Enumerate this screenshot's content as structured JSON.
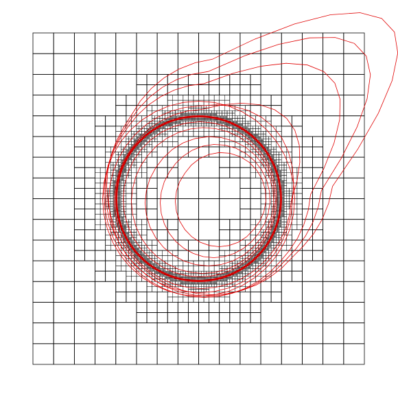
{
  "figure": {
    "kind": "adaptive-quadtree-mesh-with-contours",
    "background_color": "#ffffff",
    "grid_color": "#000000",
    "contour_color": "#e00000",
    "interface_color": "#d40000",
    "base_divisions": 8,
    "max_refinement_level": 6
  }
}
